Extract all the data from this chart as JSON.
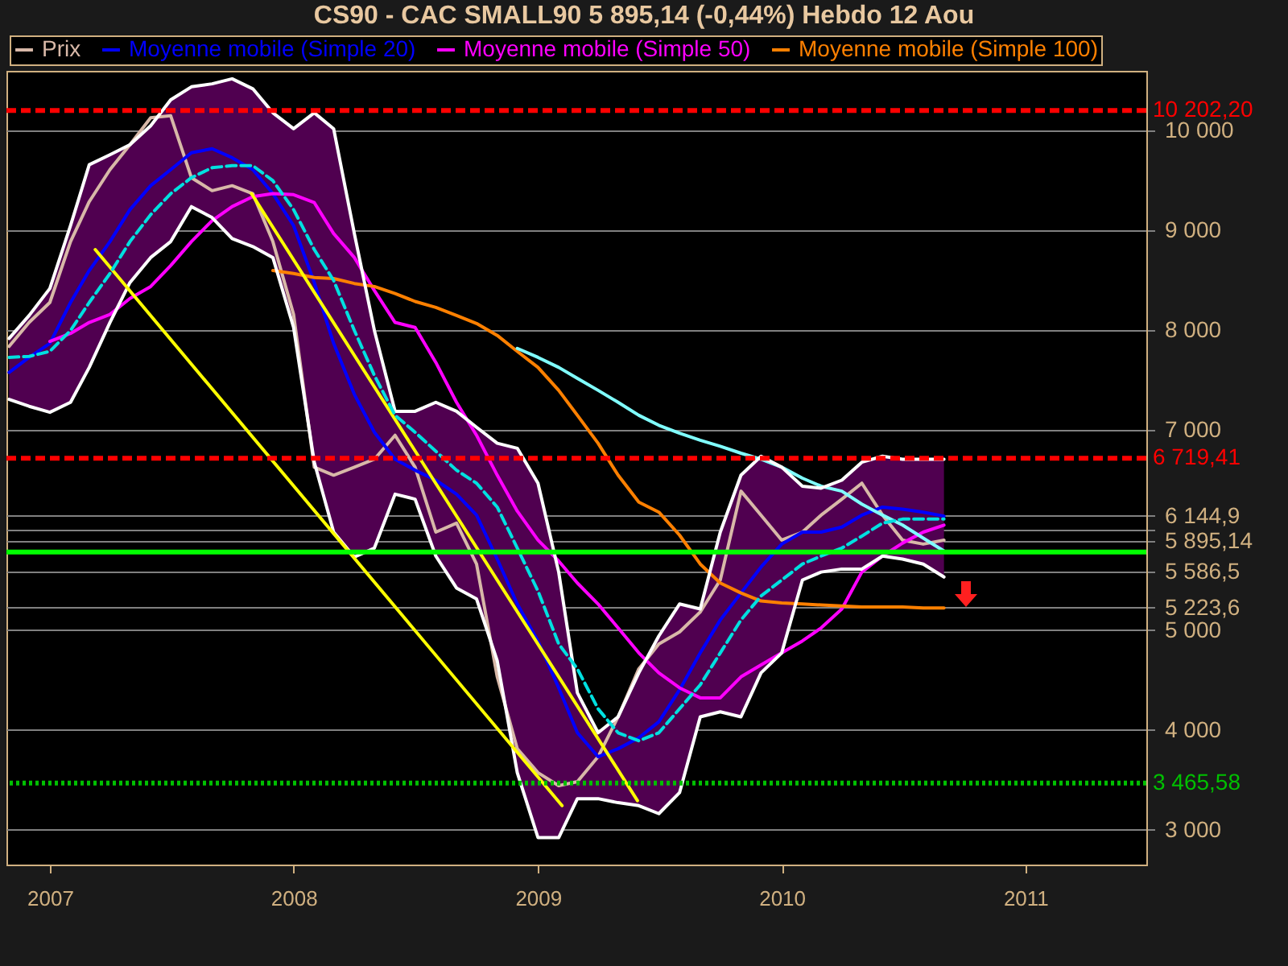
{
  "chart_data": {
    "type": "line",
    "title": "CS90 - CAC SMALL90    5 895,14 (-0,44%)    Hebdo  12 Aou",
    "x": [
      "2006-11",
      "2006-12",
      "2007-01",
      "2007-02",
      "2007-03",
      "2007-04",
      "2007-05",
      "2007-06",
      "2007-07",
      "2007-08",
      "2007-09",
      "2007-10",
      "2007-11",
      "2007-12",
      "2008-01",
      "2008-02",
      "2008-03",
      "2008-04",
      "2008-05",
      "2008-06",
      "2008-07",
      "2008-08",
      "2008-09",
      "2008-10",
      "2008-11",
      "2008-12",
      "2009-01",
      "2009-02",
      "2009-03",
      "2009-04",
      "2009-05",
      "2009-06",
      "2009-07",
      "2009-08",
      "2009-09",
      "2009-10",
      "2009-11",
      "2009-12",
      "2010-01",
      "2010-02",
      "2010-03",
      "2010-04",
      "2010-05",
      "2010-06",
      "2010-07",
      "2010-08",
      "2010-09"
    ],
    "series": [
      {
        "name": "Prix",
        "color": "#d8b8a8",
        "values": [
          7840,
          8080,
          8280,
          8890,
          9290,
          9610,
          9860,
          10130,
          10150,
          9530,
          9400,
          9450,
          9370,
          8890,
          8160,
          6630,
          6550,
          6630,
          6710,
          6950,
          6630,
          5980,
          6070,
          5660,
          4530,
          3810,
          3570,
          3440,
          3480,
          3730,
          4130,
          4610,
          4860,
          4980,
          5180,
          5500,
          6390,
          6150,
          5900,
          5980,
          6150,
          6310,
          6470,
          6150,
          5900,
          5860,
          5900
        ]
      },
      {
        "name": "Moyenne mobile (Simple 20)",
        "color": "#0000ff",
        "values": [
          7580,
          7730,
          7870,
          8280,
          8600,
          8890,
          9210,
          9450,
          9610,
          9780,
          9820,
          9730,
          9610,
          9370,
          9050,
          8480,
          7870,
          7360,
          6980,
          6710,
          6600,
          6500,
          6360,
          6150,
          5710,
          5260,
          4890,
          4420,
          3970,
          3730,
          3810,
          3920,
          4080,
          4400,
          4770,
          5100,
          5370,
          5630,
          5860,
          5980,
          5980,
          6030,
          6150,
          6230,
          6210,
          6180,
          6140
        ],
        "upper": [
          7920,
          8150,
          8420,
          9050,
          9660,
          9760,
          9860,
          10050,
          10310,
          10440,
          10470,
          10520,
          10420,
          10180,
          10020,
          10180,
          10020,
          8970,
          8000,
          7190,
          7190,
          7280,
          7190,
          7030,
          6870,
          6820,
          6470,
          5580,
          4370,
          3970,
          4130,
          4570,
          4940,
          5260,
          5210,
          5980,
          6550,
          6740,
          6630,
          6440,
          6420,
          6500,
          6680,
          6740,
          6710,
          6710,
          6710
        ],
        "lower": [
          7310,
          7240,
          7180,
          7280,
          7630,
          8080,
          8480,
          8730,
          8890,
          9240,
          9130,
          8920,
          8840,
          8730,
          8030,
          6680,
          5980,
          5730,
          5820,
          6360,
          6310,
          5740,
          5420,
          5310,
          4690,
          3570,
          2920,
          2920,
          3310,
          3310,
          3270,
          3240,
          3160,
          3370,
          4130,
          4180,
          4130,
          4570,
          4770,
          5500,
          5580,
          5610,
          5610,
          5740,
          5710,
          5660,
          5530
        ]
      },
      {
        "name": "Moyenne mobile (Simple 50)",
        "color": "#ff00ff",
        "values": [
          null,
          null,
          7890,
          7970,
          8080,
          8160,
          8320,
          8440,
          8650,
          8890,
          9100,
          9240,
          9340,
          9370,
          9360,
          9280,
          8970,
          8730,
          8400,
          8080,
          8030,
          7680,
          7280,
          6950,
          6550,
          6190,
          5900,
          5690,
          5470,
          5260,
          5020,
          4770,
          4570,
          4420,
          4320,
          4320,
          4530,
          4650,
          4770,
          4890,
          5020,
          5210,
          5580,
          5740,
          5870,
          5980,
          6050
        ]
      },
      {
        "name": "Moyenne mobile (Simple 100)",
        "color": "#ff8000",
        "values": [
          null,
          null,
          null,
          null,
          null,
          null,
          null,
          null,
          null,
          null,
          null,
          null,
          null,
          8600,
          8570,
          8530,
          8520,
          8470,
          8440,
          8370,
          8290,
          8230,
          8150,
          8070,
          7950,
          7790,
          7630,
          7400,
          7150,
          6870,
          6550,
          6280,
          6180,
          5950,
          5660,
          5470,
          5370,
          5290,
          5270,
          5260,
          5250,
          5240,
          5230,
          5230,
          5230,
          5220,
          5220
        ]
      },
      {
        "color": "#00e0e0",
        "line_style": "dashed",
        "values": [
          7730,
          7740,
          7790,
          8000,
          8280,
          8570,
          8890,
          9160,
          9370,
          9530,
          9630,
          9650,
          9650,
          9500,
          9210,
          8810,
          8500,
          8000,
          7550,
          7150,
          6980,
          6790,
          6600,
          6470,
          6230,
          5820,
          5390,
          4860,
          4610,
          4210,
          3970,
          3890,
          3970,
          4210,
          4450,
          4770,
          5100,
          5340,
          5500,
          5660,
          5740,
          5820,
          5940,
          6070,
          6110,
          6110,
          6110
        ]
      },
      {
        "color": "#80ffff",
        "values": [
          null,
          null,
          null,
          null,
          null,
          null,
          null,
          null,
          null,
          null,
          null,
          null,
          null,
          null,
          null,
          null,
          null,
          null,
          null,
          null,
          null,
          null,
          null,
          null,
          null,
          7820,
          7730,
          7630,
          7520,
          7400,
          7280,
          7150,
          7050,
          6970,
          6900,
          6840,
          6770,
          6710,
          6630,
          6520,
          6440,
          6390,
          6260,
          6150,
          6050,
          5920,
          5790
        ]
      },
      {
        "type": "line",
        "color": "#ffffff",
        "values": [
          7920,
          8150,
          8420,
          9050,
          9660,
          9760,
          9860,
          10050,
          10310,
          10440,
          10470,
          10520,
          10420,
          10180,
          10020,
          10180,
          10020,
          8970,
          8000,
          7190,
          7190,
          7280,
          7190,
          7030,
          6870,
          6820,
          6470,
          5580,
          4370,
          3970,
          4130,
          4570,
          4940,
          5260,
          5210,
          5980,
          6550,
          6740,
          6630,
          6440,
          6420,
          6500,
          6680,
          6740,
          6710,
          6710,
          6710
        ]
      },
      {
        "type": "line",
        "color": "#ffffff",
        "values": [
          7310,
          7240,
          7180,
          7280,
          7630,
          8080,
          8480,
          8730,
          8890,
          9240,
          9130,
          8920,
          8840,
          8730,
          8030,
          6680,
          5980,
          5730,
          5820,
          6360,
          6310,
          5740,
          5420,
          5310,
          4690,
          3570,
          2920,
          2920,
          3310,
          3310,
          3270,
          3240,
          3160,
          3370,
          4130,
          4180,
          4130,
          4570,
          4770,
          5500,
          5580,
          5610,
          5610,
          5740,
          5710,
          5660,
          5530
        ]
      },
      {
        "type": "line",
        "color": "#ffff00",
        "x": [
          "2007-03-10",
          "2009-02-06"
        ],
        "values": [
          8810,
          3240
        ]
      },
      {
        "type": "line",
        "color": "#ffff00",
        "x": [
          "2007-10-30",
          "2009-05-30"
        ],
        "values": [
          9370,
          3290
        ]
      }
    ],
    "xlim": [
      "2006-10-28",
      "2011-07-01"
    ],
    "xticks": [
      "2007",
      "2008",
      "2009",
      "2010",
      "2011"
    ],
    "ylim": [
      2650,
      10600
    ],
    "yticks": [
      {
        "value": 3000,
        "label": "3 000"
      },
      {
        "value": 4000,
        "label": "4 000"
      },
      {
        "value": 5000,
        "label": "5 000"
      },
      {
        "value": 5223.6,
        "label": "5 223,6"
      },
      {
        "value": 5586.5,
        "label": "5 586,5"
      },
      {
        "value": 5895.14,
        "label": "5 895,14"
      },
      {
        "value": 6000,
        "label": null
      },
      {
        "value": 6144.9,
        "label": "6 144,9"
      },
      {
        "value": 7000,
        "label": "7 000"
      },
      {
        "value": 8000,
        "label": "8 000"
      },
      {
        "value": 9000,
        "label": "9 000"
      },
      {
        "value": 10000,
        "label": "10 000"
      }
    ],
    "grid": "y",
    "legend": "top left",
    "ref_lines": [
      {
        "axis": "y",
        "value": 10202.2,
        "label": "10 202,20",
        "color": "#ff0000",
        "line_style": "dashed"
      },
      {
        "axis": "y",
        "value": 6719.41,
        "label": "6 719,41",
        "color": "#ff0000",
        "line_style": "dashed"
      },
      {
        "axis": "y",
        "value": 5780,
        "color": "#00ff00",
        "line_style": "solid"
      },
      {
        "axis": "y",
        "value": 3465.58,
        "label": "3 465,58",
        "color": "#00c000",
        "line_style": "dotted"
      }
    ]
  }
}
